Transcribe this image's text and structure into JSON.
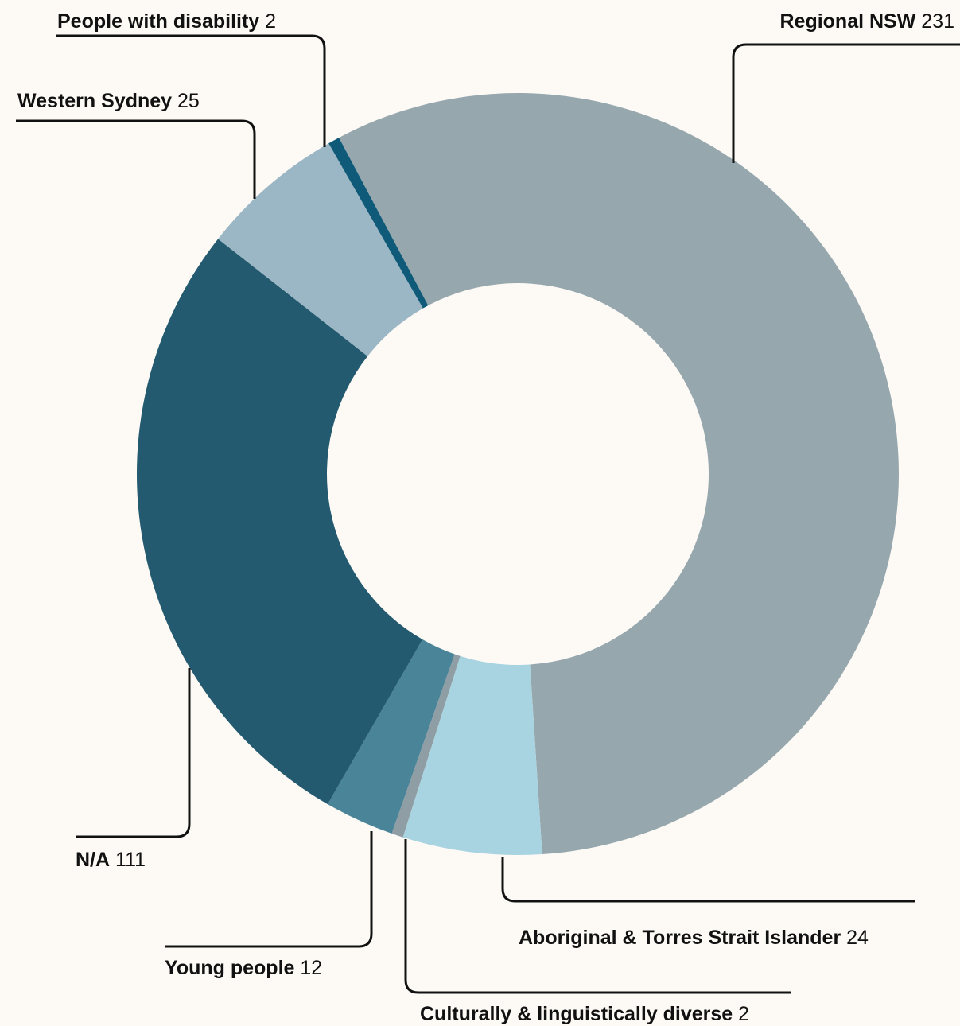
{
  "chart_data": {
    "type": "donut",
    "categories": [
      "Regional NSW",
      "Aboriginal & Torres Strait Islander",
      "Culturally & linguistically diverse",
      "Young people",
      "N/A",
      "Western Sydney",
      "People with disability"
    ],
    "values": [
      231,
      24,
      2,
      12,
      111,
      25,
      2
    ],
    "colors": [
      "#96a7ae",
      "#a8d4e2",
      "#8f9ea4",
      "#4a8499",
      "#245a6f",
      "#9bb6c4",
      "#0f5a78"
    ]
  }
}
